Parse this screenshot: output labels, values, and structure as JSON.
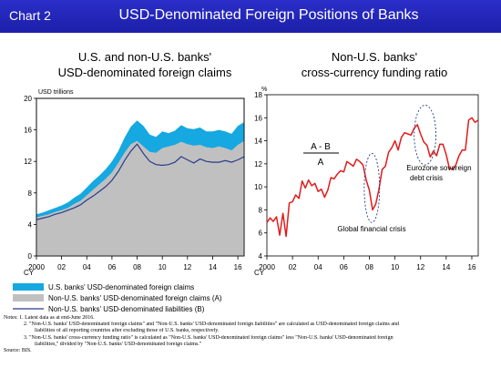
{
  "header": {
    "chart_no": "Chart 2",
    "title": "USD-Denominated Foreign Positions of Banks"
  },
  "colors": {
    "header_bg": "#2228c0",
    "claims_total": "#16a8e0",
    "claims_nonus": "#c0c0c0",
    "liabilities": "#2b3a8c",
    "ratio_line": "#e11b1b",
    "annotation": "#233a8a"
  },
  "chart_data": [
    {
      "type": "area",
      "title": "U.S. and non-U.S. banks'\nUSD-denominated foreign claims",
      "title_lines": [
        "U.S. and non-U.S. banks'",
        "USD-denominated foreign claims"
      ],
      "ylabel": "USD trillions",
      "xlabel": "CY",
      "ylim": [
        0,
        20
      ],
      "yticks": [
        0,
        4,
        8,
        12,
        16,
        20
      ],
      "xlim": [
        2000,
        2016.5
      ],
      "xticks": [
        2000,
        2002,
        2004,
        2006,
        2008,
        2010,
        2012,
        2014,
        2016
      ],
      "xtick_labels": [
        "2000",
        "02",
        "04",
        "06",
        "08",
        "10",
        "12",
        "14",
        "16"
      ],
      "x": [
        2000.0,
        2000.5,
        2001.0,
        2001.5,
        2002.0,
        2002.5,
        2003.0,
        2003.5,
        2004.0,
        2004.5,
        2005.0,
        2005.5,
        2006.0,
        2006.5,
        2007.0,
        2007.5,
        2008.0,
        2008.5,
        2009.0,
        2009.5,
        2010.0,
        2010.5,
        2011.0,
        2011.5,
        2012.0,
        2012.5,
        2013.0,
        2013.5,
        2014.0,
        2014.5,
        2015.0,
        2015.5,
        2016.0,
        2016.5
      ],
      "series": [
        {
          "name": "U.S. banks' USD-denominated foreign claims",
          "values": [
            5.3,
            5.5,
            5.8,
            6.1,
            6.4,
            6.8,
            7.4,
            7.9,
            8.7,
            9.5,
            10.2,
            11.0,
            12.0,
            13.3,
            15.0,
            16.4,
            17.2,
            16.5,
            15.4,
            15.1,
            15.8,
            15.6,
            15.9,
            16.6,
            16.2,
            16.1,
            16.3,
            15.8,
            15.8,
            16.0,
            15.8,
            15.5,
            16.5,
            17.0
          ]
        },
        {
          "name": "Non-U.S. banks' USD-denominated foreign claims (A)",
          "values": [
            4.9,
            5.1,
            5.3,
            5.6,
            5.8,
            6.1,
            6.6,
            7.0,
            7.7,
            8.4,
            9.1,
            9.8,
            10.6,
            11.8,
            13.1,
            14.2,
            14.6,
            13.9,
            13.2,
            13.1,
            13.7,
            13.9,
            14.1,
            14.5,
            14.2,
            14.0,
            14.1,
            13.8,
            13.7,
            13.9,
            13.7,
            13.4,
            14.1,
            14.6
          ]
        },
        {
          "name": "Non-U.S. banks' USD-denominated liabilities (B)",
          "values": [
            4.6,
            4.8,
            5.0,
            5.3,
            5.5,
            5.8,
            6.1,
            6.5,
            7.1,
            7.6,
            8.2,
            8.8,
            9.6,
            10.7,
            12.1,
            13.3,
            14.2,
            13.0,
            12.0,
            11.6,
            11.5,
            11.6,
            11.9,
            12.6,
            12.2,
            11.8,
            12.3,
            12.0,
            11.9,
            11.9,
            12.1,
            11.9,
            12.2,
            12.6
          ]
        }
      ]
    },
    {
      "type": "line",
      "title": "Non-U.S. banks'\ncross-currency funding ratio",
      "title_lines": [
        "Non-U.S. banks'",
        "cross-currency funding ratio"
      ],
      "ylabel": "%",
      "xlabel": "CY",
      "ylim": [
        4,
        18
      ],
      "yticks": [
        4,
        6,
        8,
        10,
        12,
        14,
        16,
        18
      ],
      "xlim": [
        2000,
        2016.5
      ],
      "xticks": [
        2000,
        2002,
        2004,
        2006,
        2008,
        2010,
        2012,
        2014,
        2016
      ],
      "xtick_labels": [
        "2000",
        "02",
        "04",
        "06",
        "08",
        "10",
        "12",
        "14",
        "16"
      ],
      "x": [
        2000.0,
        2000.25,
        2000.5,
        2000.75,
        2001.0,
        2001.25,
        2001.5,
        2001.75,
        2002.0,
        2002.25,
        2002.5,
        2002.75,
        2003.0,
        2003.25,
        2003.5,
        2003.75,
        2004.0,
        2004.25,
        2004.5,
        2004.75,
        2005.0,
        2005.25,
        2005.5,
        2005.75,
        2006.0,
        2006.25,
        2006.5,
        2006.75,
        2007.0,
        2007.25,
        2007.5,
        2007.75,
        2008.0,
        2008.25,
        2008.5,
        2008.75,
        2009.0,
        2009.25,
        2009.5,
        2009.75,
        2010.0,
        2010.25,
        2010.5,
        2010.75,
        2011.0,
        2011.25,
        2011.5,
        2011.75,
        2012.0,
        2012.25,
        2012.5,
        2012.75,
        2013.0,
        2013.25,
        2013.5,
        2013.75,
        2014.0,
        2014.25,
        2014.5,
        2014.75,
        2015.0,
        2015.25,
        2015.5,
        2015.75,
        2016.0,
        2016.25,
        2016.5
      ],
      "series": [
        {
          "name": "Non-U.S. banks' cross-currency funding ratio",
          "values": [
            6.9,
            7.3,
            7.0,
            7.4,
            5.8,
            7.7,
            5.7,
            8.6,
            8.7,
            9.3,
            9.0,
            10.5,
            9.9,
            10.6,
            10.1,
            10.3,
            9.6,
            9.8,
            9.1,
            9.7,
            10.8,
            10.7,
            11.1,
            11.4,
            11.3,
            12.2,
            12.0,
            11.8,
            12.4,
            12.2,
            11.9,
            10.6,
            9.7,
            8.0,
            8.5,
            9.8,
            11.5,
            11.8,
            13.0,
            13.4,
            14.0,
            13.2,
            14.3,
            14.7,
            14.6,
            14.5,
            15.1,
            15.4,
            14.6,
            13.9,
            13.6,
            12.6,
            13.1,
            12.7,
            13.7,
            13.7,
            12.8,
            11.6,
            11.5,
            11.9,
            12.7,
            13.2,
            13.2,
            15.8,
            16.0,
            15.6,
            15.8
          ]
        }
      ],
      "annotations": [
        {
          "type": "formula",
          "numerator": "A - B",
          "denominator": "A"
        },
        {
          "type": "ellipse",
          "label": "Global financial crisis",
          "x_range": [
            2007.6,
            2008.8
          ],
          "y_range": [
            6.9,
            12.9
          ]
        },
        {
          "type": "ellipse",
          "label": "Eurozone sovereign debt crisis",
          "x_range": [
            2011.5,
            2013.2
          ],
          "y_range": [
            11.9,
            17.1
          ]
        }
      ]
    }
  ],
  "legend": {
    "items": [
      {
        "label": "U.S. banks' USD-denominated foreign claims",
        "kind": "swatch",
        "color": "#16a8e0"
      },
      {
        "label": "Non-U.S. banks' USD-denominated foreign claims (A)",
        "kind": "swatch",
        "color": "#c0c0c0"
      },
      {
        "label": "Non-U.S. banks' USD-denominated liabilities (B)",
        "kind": "line",
        "color": "#2b3a8c"
      }
    ]
  },
  "notes": {
    "line1": "Notes: 1. Latest data as at end-June 2016.",
    "line2a": "2. \"Non-U.S. banks' USD-denominated foreign claims\" and \"Non-U.S. banks' USD-denominated foreign liabilities\" are calculated as USD-denominated foreign claims and",
    "line2b": "liabilities of all reporting countries after excluding those of U.S. banks, respectively.",
    "line3a": "3. \"Non-U.S. banks' cross-currency funding ratio\" is calculated as \"Non-U.S. banks' USD-denominated foreign claims\" less \"Non-U.S. banks' USD-denominated foreign",
    "line3b": "liabilities,\" divided by \"Non-U.S. banks' USD-denominated foreign claims.\"",
    "source": "Source: BIS."
  }
}
